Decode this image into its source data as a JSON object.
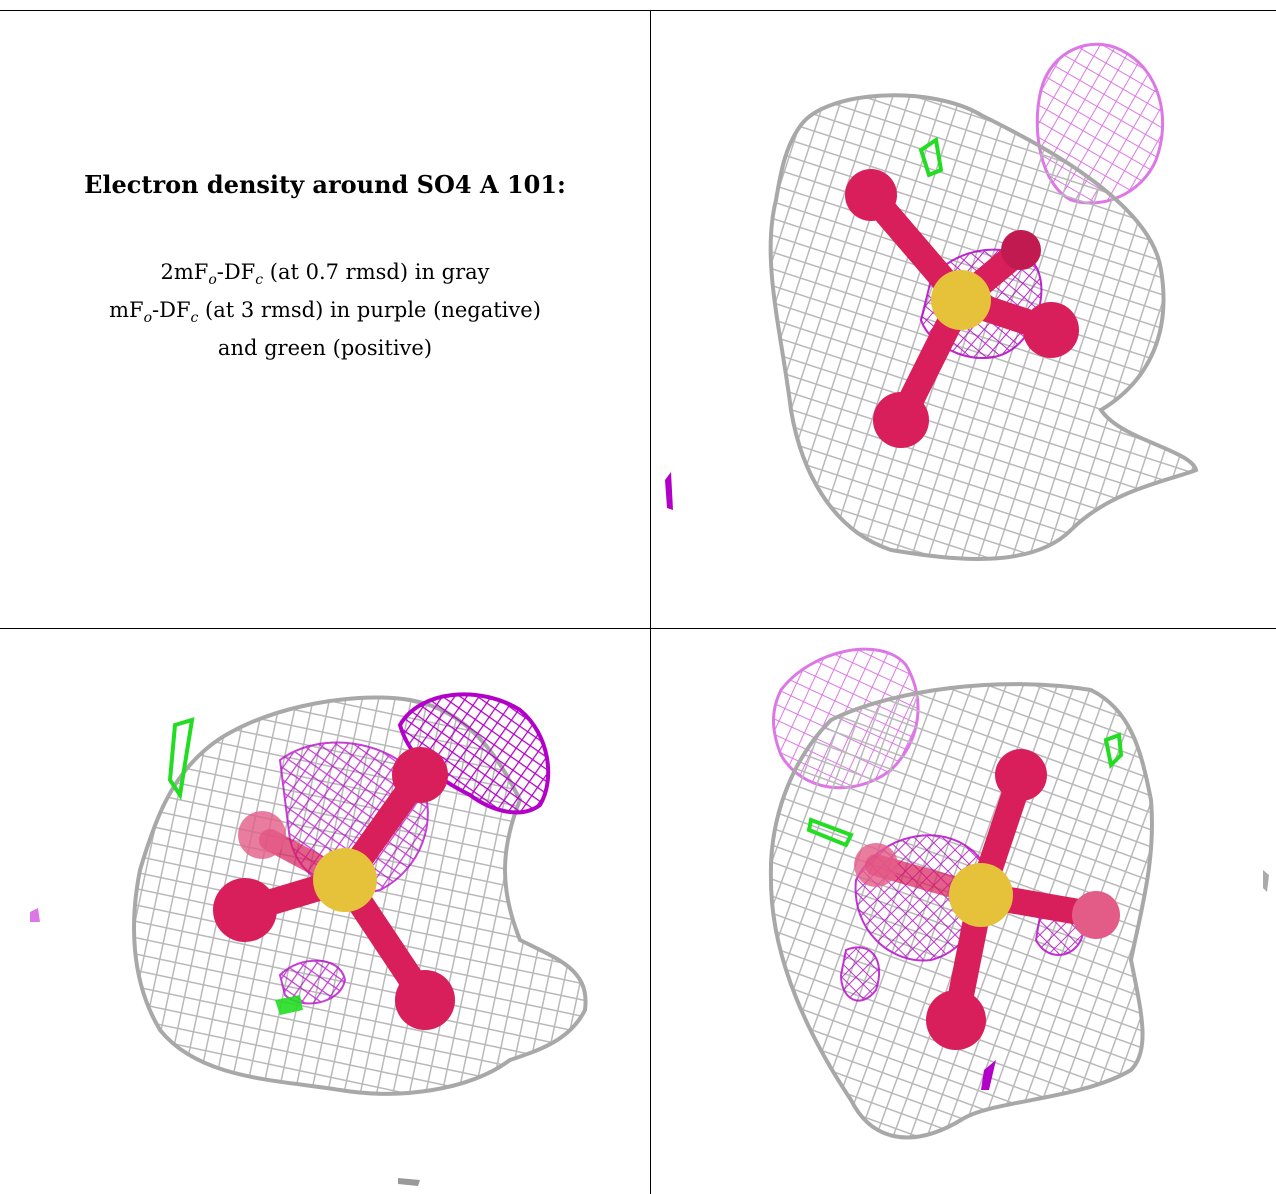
{
  "caption": {
    "title": "Electron density around SO4 A 101:",
    "line1_prefix": "2mF",
    "line1_sub1": "o",
    "line1_mid": "-DF",
    "line1_sub2": "c",
    "line1_suffix": " (at 0.7 rmsd) in gray",
    "line2_prefix": "mF",
    "line2_sub1": "o",
    "line2_mid": "-DF",
    "line2_sub2": "c",
    "line2_suffix": " (at 3 rmsd) in purple (negative)",
    "line3": "and green (positive)"
  },
  "colors": {
    "mesh_gray": "#b9b9b9",
    "mesh_purple_light": "#dd77e6",
    "mesh_purple_dark": "#b300c8",
    "mesh_green": "#22dd22",
    "oxygen": "#d81e5b",
    "sulfur": "#e6c23a",
    "border": "#000000"
  },
  "panels": [
    {
      "name": "view-top-right"
    },
    {
      "name": "view-bottom-left"
    },
    {
      "name": "view-bottom-right"
    }
  ]
}
